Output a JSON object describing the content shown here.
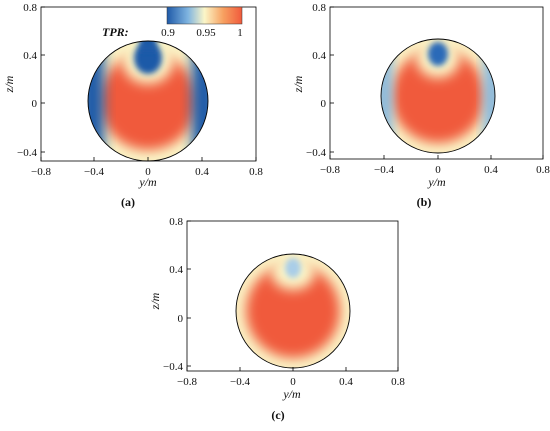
{
  "figure": {
    "panels": [
      {
        "label": "(a)",
        "x_label": "y/m",
        "y_label": "z/m",
        "x_ticks": [
          "−0.8",
          "−0.4",
          "0",
          "0.4",
          "0.8"
        ],
        "y_ticks": [
          "0.8",
          "0.4",
          "0",
          "−0.4"
        ],
        "hole_strength": 1.0
      },
      {
        "label": "(b)",
        "x_label": "y/m",
        "y_label": "z/m",
        "x_ticks": [
          "−0.8",
          "−0.4",
          "0",
          "0.4",
          "0.8"
        ],
        "y_ticks": [
          "0.8",
          "0.4",
          "0",
          "−0.4"
        ],
        "hole_strength": 0.65
      },
      {
        "label": "(c)",
        "x_label": "y/m",
        "y_label": "z/m",
        "x_ticks": [
          "−0.8",
          "−0.4",
          "0",
          "0.4",
          "0.8"
        ],
        "y_ticks": [
          "0.8",
          "0.4",
          "0",
          "−0.4"
        ],
        "hole_strength": 0.35
      }
    ],
    "colorbar": {
      "title": "TPR:",
      "tick_labels": [
        "0.9",
        "0.95",
        "1"
      ],
      "range": [
        0.88,
        1.0
      ],
      "colors": [
        "#1f5aa8",
        "#7fb4e0",
        "#fbf6c8",
        "#f7a060",
        "#f05a3c"
      ]
    }
  }
}
